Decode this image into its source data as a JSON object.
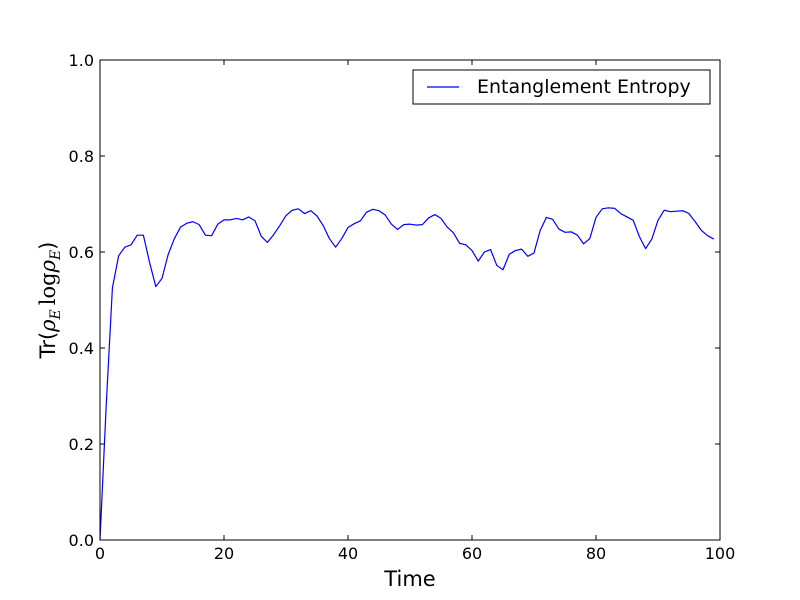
{
  "chart_data": {
    "type": "line",
    "title": "",
    "xlabel": "Time",
    "ylabel_prefix": "Tr(",
    "ylabel_math": {
      "rho": "ρ",
      "sub": "E",
      "log": "log"
    },
    "ylabel_suffix": ")",
    "xlim": [
      0,
      100
    ],
    "ylim": [
      0.0,
      1.0
    ],
    "xticks": [
      "0",
      "20",
      "40",
      "60",
      "80",
      "100"
    ],
    "yticks": [
      "0.0",
      "0.2",
      "0.4",
      "0.6",
      "0.8",
      "1.0"
    ],
    "grid": false,
    "legend_position": "top-right",
    "series": [
      {
        "name": "Entanglement Entropy",
        "color": "#0000ff",
        "x": [
          0,
          1,
          2,
          3,
          4,
          5,
          6,
          7,
          8,
          9,
          10,
          11,
          12,
          13,
          14,
          15,
          16,
          17,
          18,
          19,
          20,
          21,
          22,
          23,
          24,
          25,
          26,
          27,
          28,
          29,
          30,
          31,
          32,
          33,
          34,
          35,
          36,
          37,
          38,
          39,
          40,
          41,
          42,
          43,
          44,
          45,
          46,
          47,
          48,
          49,
          50,
          51,
          52,
          53,
          54,
          55,
          56,
          57,
          58,
          59,
          60,
          61,
          62,
          63,
          64,
          65,
          66,
          67,
          68,
          69,
          70,
          71,
          72,
          73,
          74,
          75,
          76,
          77,
          78,
          79,
          80,
          81,
          82,
          83,
          84,
          85,
          86,
          87,
          88,
          89,
          90,
          91,
          92,
          93,
          94,
          95,
          96,
          97,
          98,
          99
        ],
        "y": [
          0.0,
          0.28,
          0.525,
          0.592,
          0.61,
          0.615,
          0.635,
          0.635,
          0.578,
          0.528,
          0.545,
          0.595,
          0.628,
          0.652,
          0.66,
          0.663,
          0.657,
          0.635,
          0.634,
          0.658,
          0.667,
          0.667,
          0.67,
          0.667,
          0.673,
          0.665,
          0.633,
          0.62,
          0.636,
          0.655,
          0.676,
          0.687,
          0.69,
          0.68,
          0.686,
          0.675,
          0.655,
          0.628,
          0.61,
          0.628,
          0.651,
          0.659,
          0.665,
          0.683,
          0.689,
          0.686,
          0.677,
          0.658,
          0.647,
          0.657,
          0.658,
          0.656,
          0.657,
          0.671,
          0.678,
          0.67,
          0.652,
          0.64,
          0.618,
          0.615,
          0.603,
          0.581,
          0.6,
          0.605,
          0.572,
          0.563,
          0.595,
          0.603,
          0.606,
          0.591,
          0.598,
          0.645,
          0.672,
          0.668,
          0.648,
          0.641,
          0.642,
          0.635,
          0.617,
          0.628,
          0.672,
          0.69,
          0.692,
          0.691,
          0.68,
          0.673,
          0.666,
          0.632,
          0.607,
          0.627,
          0.666,
          0.687,
          0.684,
          0.685,
          0.686,
          0.68,
          0.663,
          0.645,
          0.634,
          0.627
        ]
      }
    ]
  }
}
